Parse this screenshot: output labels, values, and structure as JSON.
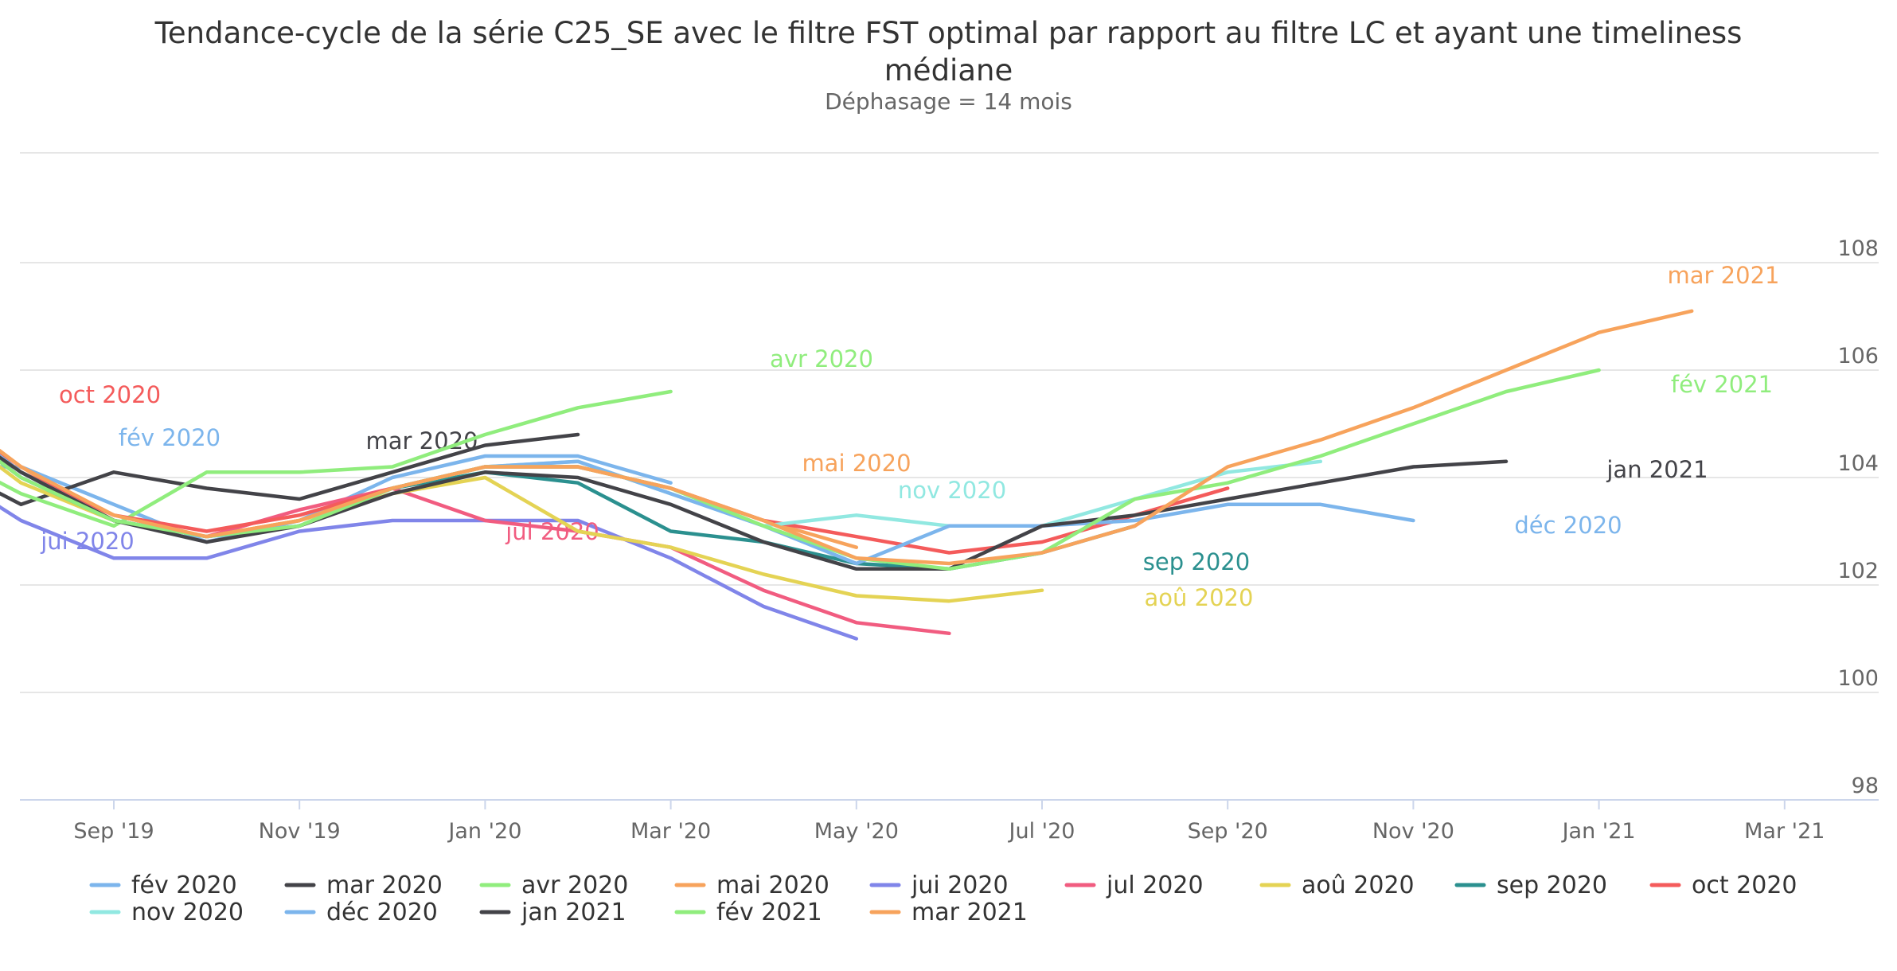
{
  "chart_data": {
    "type": "line",
    "title": "Tendance-cycle de la série C25_SE avec le filtre FST optimal par rapport au filtre LC et ayant une timeliness médiane",
    "subtitle": "Déphasage = 14 mois",
    "x_tick_labels": [
      "Sep '19",
      "Nov '19",
      "Jan '20",
      "Mar '20",
      "May '20",
      "Jul '20",
      "Sep '20",
      "Nov '20",
      "Jan '21",
      "Mar '21"
    ],
    "x_range": [
      "2019-07",
      "2021-03"
    ],
    "y_ticks": [
      98,
      100,
      102,
      104,
      106,
      108
    ],
    "ylim": [
      97.8,
      110.0
    ],
    "grid": true,
    "legend_position": "bottom",
    "series": [
      {
        "name": "fév 2020",
        "color": "#7cb5ec",
        "start": "2019-07",
        "label_at": [
          98,
          104.4
        ],
        "values": [
          104.2,
          104.2,
          103.5,
          102.8,
          103.2,
          104.0,
          104.4,
          104.4,
          103.9
        ]
      },
      {
        "name": "mar 2020",
        "color": "#434348",
        "start": "2019-07",
        "label_at": [
          -1,
          107.5
        ],
        "values": [
          104.4,
          103.5,
          104.1,
          103.8,
          103.6,
          104.1,
          104.6,
          104.8
        ]
      },
      {
        "name": "avr 2020",
        "color": "#90ed7d",
        "start": "2019-07",
        "label_at": [
          2,
          108.6
        ],
        "values": [
          104.6,
          103.7,
          103.1,
          104.1,
          104.1,
          104.2,
          104.8,
          105.3,
          105.6
        ]
      },
      {
        "name": "mai 2020",
        "color": "#f7a35c",
        "start": "2019-07",
        "label_at": [
          5,
          105.5
        ],
        "values": [
          105.5,
          104.2,
          103.2,
          102.9,
          103.2,
          103.8,
          104.2,
          104.2,
          103.8,
          103.2,
          102.7
        ]
      },
      {
        "name": "jui 2020",
        "color": "#8085e9",
        "start": "2019-07",
        "label_at": [
          -2,
          104.8
        ],
        "values": [
          104.3,
          103.2,
          102.5,
          102.5,
          103.0,
          103.2,
          103.2,
          103.2,
          102.5,
          101.6,
          101.0
        ]
      },
      {
        "name": "jul 2020",
        "color": "#f15c80",
        "start": "2019-07",
        "label_at": [
          3,
          104.6
        ],
        "values": [
          105.4,
          104.1,
          103.2,
          102.9,
          103.4,
          103.8,
          103.2,
          103.0,
          102.7,
          101.9,
          101.3,
          101.1
        ]
      },
      {
        "name": "aoû 2020",
        "color": "#e4d354",
        "start": "2019-07",
        "label_at": [
          4,
          103.1
        ],
        "values": [
          105.2,
          103.9,
          103.2,
          102.9,
          103.2,
          103.7,
          104.0,
          103.0,
          102.7,
          102.2,
          101.8,
          101.7,
          101.9
        ]
      },
      {
        "name": "sep 2020",
        "color": "#2b908f",
        "start": "2019-07",
        "label_at": [
          4,
          103.7
        ],
        "values": [
          105.3,
          104.0,
          103.2,
          102.9,
          103.1,
          103.8,
          104.1,
          103.9,
          103.0,
          102.8,
          102.4,
          102.3,
          102.6,
          103.1
        ]
      },
      {
        "name": "oct 2020",
        "color": "#f45b5b",
        "start": "2019-07",
        "label_at": [
          -4,
          110.4
        ],
        "values": [
          105.5,
          104.1,
          103.3,
          103.0,
          103.3,
          103.8,
          104.2,
          104.2,
          103.8,
          103.2,
          102.9,
          102.6,
          102.8,
          103.3,
          103.8
        ]
      },
      {
        "name": "nov 2020",
        "color": "#91e8e1",
        "start": "2019-07",
        "label_at": [
          -6,
          106.4
        ],
        "values": [
          105.4,
          104.1,
          103.2,
          102.9,
          103.1,
          103.8,
          104.2,
          104.3,
          103.7,
          103.1,
          103.3,
          103.1,
          103.1,
          103.6,
          104.1,
          104.3
        ]
      },
      {
        "name": "déc 2020",
        "color": "#7cb5ec",
        "start": "2019-07",
        "label_at": [
          2,
          104.8
        ],
        "values": [
          105.4,
          104.1,
          103.2,
          102.9,
          103.1,
          103.8,
          104.2,
          104.3,
          103.7,
          103.1,
          102.4,
          103.1,
          103.1,
          103.2,
          103.5,
          103.5,
          103.2
        ]
      },
      {
        "name": "jan 2021",
        "color": "#434348",
        "start": "2019-07",
        "label_at": [
          6,
          109.0
        ],
        "values": [
          105.3,
          104.1,
          103.2,
          102.8,
          103.1,
          103.7,
          104.1,
          104.0,
          103.5,
          102.8,
          102.3,
          102.3,
          103.1,
          103.3,
          103.6,
          103.9,
          104.2,
          104.3
        ]
      },
      {
        "name": "fév 2021",
        "color": "#90ed7d",
        "start": "2019-07",
        "label_at": [
          -20,
          109.7
        ],
        "values": [
          105.3,
          104.0,
          103.2,
          102.9,
          103.1,
          103.8,
          104.2,
          104.2,
          103.8,
          103.1,
          102.5,
          102.3,
          102.6,
          103.6,
          103.9,
          104.4,
          105.0,
          105.6,
          106.0
        ]
      },
      {
        "name": "mar 2021",
        "color": "#f7a35c",
        "start": "2019-07",
        "label_at": [
          -20,
          105.8
        ],
        "values": [
          105.5,
          104.2,
          103.3,
          102.9,
          103.2,
          103.8,
          104.2,
          104.2,
          103.8,
          103.2,
          102.5,
          102.4,
          102.6,
          103.1,
          104.2,
          104.7,
          105.3,
          106.0,
          106.7,
          107.1
        ]
      }
    ]
  }
}
